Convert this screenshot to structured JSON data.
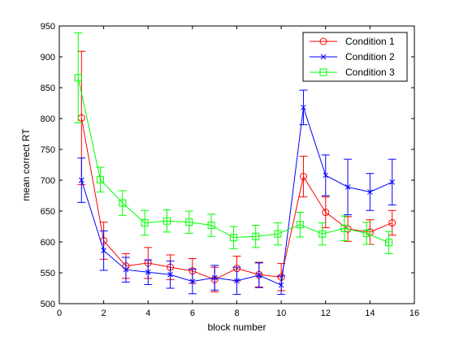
{
  "chart_data": {
    "type": "line",
    "title": "",
    "xlabel": "block number",
    "ylabel": "mean correct RT",
    "xlim": [
      0,
      16
    ],
    "ylim": [
      500,
      950
    ],
    "xticks": [
      0,
      2,
      4,
      6,
      8,
      10,
      12,
      14,
      16
    ],
    "yticks": [
      500,
      550,
      600,
      650,
      700,
      750,
      800,
      850,
      900,
      950
    ],
    "grid": false,
    "legend_position": "top-right",
    "series": [
      {
        "name": "Condition 1",
        "color": "#ff0000",
        "marker": "circle",
        "x": [
          1,
          2,
          3,
          4,
          5,
          6,
          7,
          8,
          9,
          10,
          11,
          12,
          13,
          14,
          15
        ],
        "values": [
          801,
          602,
          561,
          566,
          559,
          553,
          539,
          557,
          547,
          543,
          706,
          648,
          621,
          616,
          631
        ],
        "errors": [
          108,
          30,
          20,
          25,
          20,
          20,
          20,
          20,
          20,
          22,
          33,
          25,
          20,
          20,
          20
        ]
      },
      {
        "name": "Condition 2",
        "color": "#0000ff",
        "marker": "x",
        "x": [
          1,
          2,
          3,
          4,
          5,
          6,
          7,
          8,
          9,
          10,
          11,
          12,
          13,
          14,
          15
        ],
        "values": [
          700,
          586,
          555,
          551,
          547,
          536,
          542,
          537,
          546,
          530,
          818,
          708,
          689,
          681,
          697
        ],
        "errors": [
          36,
          32,
          20,
          20,
          22,
          20,
          20,
          22,
          20,
          15,
          28,
          33,
          45,
          30,
          37
        ]
      },
      {
        "name": "Condition 3",
        "color": "#00ff00",
        "marker": "square",
        "x": [
          0.85,
          1.85,
          2.85,
          3.85,
          4.85,
          5.85,
          6.85,
          7.85,
          8.85,
          9.85,
          10.85,
          11.85,
          12.85,
          13.85,
          14.85
        ],
        "values": [
          866,
          701,
          663,
          631,
          634,
          632,
          627,
          607,
          609,
          613,
          628,
          613,
          622,
          614,
          599
        ],
        "errors": [
          73,
          20,
          20,
          20,
          18,
          18,
          18,
          18,
          18,
          18,
          20,
          18,
          20,
          18,
          18
        ]
      }
    ]
  }
}
